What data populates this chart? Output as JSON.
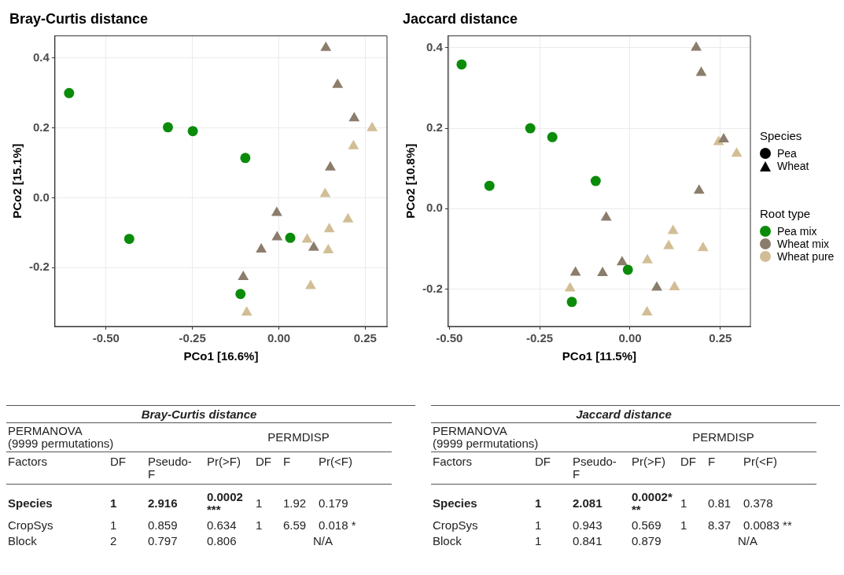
{
  "chart_data": [
    {
      "type": "scatter",
      "title": "Bray-Curtis distance",
      "xlabel": "PCo1 [16.6%]",
      "ylabel": "PCo2 [15.1%]",
      "xlim": [
        -0.648,
        0.313
      ],
      "ylim": [
        -0.369,
        0.464
      ],
      "xticks": [
        {
          "value": -0.5,
          "label": "-0.50"
        },
        {
          "value": -0.25,
          "label": "-0.25"
        },
        {
          "value": 0,
          "label": "0.00"
        },
        {
          "value": 0.25,
          "label": "0.25"
        }
      ],
      "yticks": [
        {
          "value": -0.2,
          "label": "-0.2"
        },
        {
          "value": 0,
          "label": "0.0"
        },
        {
          "value": 0.2,
          "label": "0.2"
        },
        {
          "value": 0.4,
          "label": "0.4"
        }
      ],
      "grid": true,
      "series": [
        {
          "color": "#0a8c0a",
          "marker": "circle",
          "x": [
            -0.607,
            -0.321,
            -0.249,
            -0.097,
            -0.433,
            0.033,
            -0.111
          ],
          "values": [
            0.3,
            0.202,
            0.191,
            0.114,
            -0.118,
            -0.115,
            -0.276
          ]
        },
        {
          "color": "#8b7d6b",
          "marker": "triangle",
          "x": [
            0.136,
            0.17,
            0.218,
            0.149,
            -0.006,
            -0.005,
            -0.051,
            0.101,
            -0.103
          ],
          "values": [
            0.43,
            0.324,
            0.228,
            0.087,
            -0.043,
            -0.113,
            -0.148,
            -0.143,
            -0.227
          ]
        },
        {
          "color": "#d2be96",
          "marker": "triangle",
          "x": [
            0.27,
            0.216,
            0.134,
            0.2,
            0.146,
            0.082,
            0.143,
            0.092,
            -0.093
          ],
          "values": [
            0.2,
            0.148,
            0.011,
            -0.062,
            -0.09,
            -0.12,
            -0.15,
            -0.253,
            -0.329
          ]
        }
      ]
    },
    {
      "type": "scatter",
      "title": "Jaccard distance",
      "xlabel": "PCo1 [11.5%]",
      "ylabel": "PCo2 [10.8%]",
      "xlim": [
        -0.503,
        0.333
      ],
      "ylim": [
        -0.293,
        0.43
      ],
      "xticks": [
        {
          "value": -0.5,
          "label": "-0.50"
        },
        {
          "value": -0.25,
          "label": "-0.25"
        },
        {
          "value": 0,
          "label": "0.00"
        },
        {
          "value": 0.25,
          "label": "0.25"
        }
      ],
      "yticks": [
        {
          "value": -0.2,
          "label": "-0.2"
        },
        {
          "value": 0,
          "label": "0.0"
        },
        {
          "value": 0.2,
          "label": "0.2"
        },
        {
          "value": 0.4,
          "label": "0.4"
        }
      ],
      "grid": true,
      "legend": "right",
      "legend_title": "Root type",
      "annotations": [
        "Species",
        "Pea",
        "Wheat"
      ],
      "series": [
        {
          "name": "Pea mix",
          "color": "#0a8c0a",
          "marker": "circle",
          "x": [
            -0.466,
            -0.276,
            -0.215,
            -0.389,
            -0.095,
            -0.006,
            -0.161
          ],
          "values": [
            0.359,
            0.2,
            0.178,
            0.057,
            0.069,
            -0.152,
            -0.232
          ]
        },
        {
          "name": "Wheat mix",
          "color": "#8b7d6b",
          "marker": "triangle",
          "x": [
            0.183,
            0.197,
            0.259,
            0.191,
            -0.066,
            -0.022,
            -0.151,
            -0.076,
            0.074
          ],
          "values": [
            0.401,
            0.338,
            0.173,
            0.045,
            -0.022,
            -0.133,
            -0.159,
            -0.16,
            -0.196
          ]
        },
        {
          "name": "Wheat pure",
          "color": "#d2be96",
          "marker": "triangle",
          "x": [
            0.245,
            0.295,
            0.119,
            0.107,
            0.202,
            0.048,
            -0.166,
            0.123,
            0.047
          ],
          "values": [
            0.166,
            0.137,
            -0.055,
            -0.093,
            -0.098,
            -0.128,
            -0.198,
            -0.195,
            -0.258
          ]
        }
      ]
    },
    {
      "type": "other",
      "title": "Bray-Curtis distance",
      "annotations": [
        "PERMANOVA\n(9999 permutations)",
        "PERMDISP",
        "Factors",
        "DF",
        "Pseudo-\nF",
        "Pr(>F)",
        "DF",
        "F",
        "Pr(<F)",
        "Species",
        "1",
        "2.916",
        "0.0002\n***",
        "1",
        "1.92",
        "0.179",
        "CropSys",
        "1",
        "0.859",
        "0.634",
        "1",
        "6.59",
        "0.018 *",
        "Block",
        "2",
        "0.797",
        "0.806",
        "N/A"
      ]
    },
    {
      "type": "other",
      "title": "Jaccard distance",
      "annotations": [
        "PERMANOVA\n(9999 permutations)",
        "PERMDISP",
        "Factors",
        "DF",
        "Pseudo-\nF",
        "Pr(>F)",
        "DF",
        "F",
        "Pr(<F)",
        "Species",
        "1",
        "2.081",
        "0.0002*\n**",
        "1",
        "0.81",
        "0.378",
        "CropSys",
        "1",
        "0.943",
        "0.569",
        "1",
        "8.37",
        "0.0083 **",
        "Block",
        "1",
        "0.841",
        "0.879",
        "N/A"
      ]
    }
  ]
}
